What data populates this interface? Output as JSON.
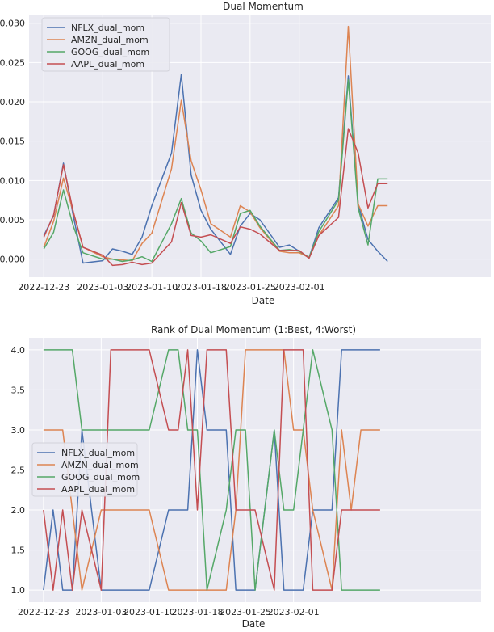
{
  "colors": {
    "NFLX": "#4c72b0",
    "AMZN": "#dd8452",
    "GOOG": "#55a868",
    "AAPL": "#c44e52",
    "plot_bg": "#eaeaf2",
    "grid": "#ffffff"
  },
  "chart_data": [
    {
      "type": "line",
      "title": "Dual Momentum",
      "xlabel": "Date",
      "ylabel": "",
      "x_day_range": [
        -1.5,
        45.5
      ],
      "ylim": [
        -0.0023,
        0.0311
      ],
      "x_ticks": [
        {
          "day": 0,
          "label": "2022-12-23"
        },
        {
          "day": 6,
          "label": "2023-01-03"
        },
        {
          "day": 11,
          "label": "2023-01-10"
        },
        {
          "day": 16,
          "label": "2023-01-18"
        },
        {
          "day": 21,
          "label": "2023-01-25"
        },
        {
          "day": 26,
          "label": "2023-02-01"
        }
      ],
      "y_ticks": [
        {
          "value": 0.0,
          "label": "0.000"
        },
        {
          "value": 0.005,
          "label": "0.005"
        },
        {
          "value": 0.01,
          "label": "0.010"
        },
        {
          "value": 0.015,
          "label": "0.015"
        },
        {
          "value": 0.02,
          "label": "0.020"
        },
        {
          "value": 0.025,
          "label": "0.025"
        },
        {
          "value": 0.03,
          "label": "0.030"
        }
      ],
      "legend_position": "upper-left",
      "x": [
        0,
        1,
        2,
        3,
        4,
        5,
        6,
        7,
        8,
        9,
        10,
        11,
        12,
        13,
        14,
        15,
        16,
        17,
        18,
        19,
        20,
        21,
        22,
        23,
        24,
        25,
        26,
        27,
        28,
        29,
        30
      ],
      "series": [
        {
          "name": "NFLX_dual_mom",
          "key": "NFLX",
          "values": [
            0.003,
            0.0055,
            0.0122,
            0.0055,
            -0.0005,
            -0.0002,
            0.0013,
            0.001,
            0.0006,
            0.0028,
            0.0068,
            0.0135,
            0.0235,
            0.0107,
            0.0062,
            0.0038,
            0.0006,
            0.0042,
            0.0058,
            0.005,
            0.0015,
            0.0018,
            0.001,
            0.0002,
            0.004,
            0.0078,
            0.0233,
            0.007,
            0.0025,
            0.001,
            -0.0003
          ]
        },
        {
          "name": "AMZN_dual_mom",
          "key": "AMZN",
          "values": [
            0.0015,
            0.0048,
            0.0103,
            0.006,
            0.0015,
            0.0003,
            0.0,
            -0.0001,
            -0.0002,
            0.002,
            0.0033,
            0.0115,
            0.0202,
            0.0125,
            0.0088,
            0.0045,
            0.0028,
            0.0068,
            0.006,
            0.004,
            0.001,
            0.0008,
            0.0008,
            0.0002,
            0.003,
            0.0068,
            0.0296,
            0.007,
            0.0042,
            0.0068,
            0.0068
          ]
        },
        {
          "name": "GOOG_dual_mom",
          "key": "GOOG",
          "values": [
            0.0013,
            0.0034,
            0.0088,
            0.0042,
            0.0008,
            0.0,
            0.0,
            -0.0003,
            -0.0001,
            0.0003,
            -0.0003,
            0.0045,
            0.0077,
            0.0033,
            0.0023,
            0.0008,
            0.0016,
            0.0058,
            0.0062,
            0.0042,
            0.0011,
            0.0012,
            0.001,
            0.0002,
            0.0035,
            0.0075,
            0.0228,
            0.0065,
            0.0018,
            0.0102,
            0.0102
          ]
        },
        {
          "name": "AAPL_dual_mom",
          "key": "AAPL",
          "values": [
            0.0028,
            0.0056,
            0.012,
            0.006,
            0.0015,
            0.0005,
            -0.0008,
            -0.0007,
            -0.0004,
            -0.0007,
            -0.0005,
            0.0022,
            0.0072,
            0.003,
            0.0028,
            0.0031,
            0.002,
            0.0041,
            0.0038,
            0.0032,
            0.0011,
            0.0011,
            0.0011,
            0.0001,
            0.003,
            0.0053,
            0.0166,
            0.0135,
            0.0065,
            0.0096,
            0.0096
          ]
        }
      ]
    },
    {
      "type": "line",
      "title": "Rank of Dual Momentum (1:Best, 4:Worst)",
      "xlabel": "Date",
      "ylabel": "",
      "x_day_range": [
        -1.5,
        45.5
      ],
      "ylim": [
        0.85,
        4.15
      ],
      "x_ticks": [
        {
          "day": 0,
          "label": "2022-12-23"
        },
        {
          "day": 6,
          "label": "2023-01-03"
        },
        {
          "day": 11,
          "label": "2023-01-10"
        },
        {
          "day": 16,
          "label": "2023-01-18"
        },
        {
          "day": 21,
          "label": "2023-01-25"
        },
        {
          "day": 26,
          "label": "2023-02-01"
        }
      ],
      "y_ticks": [
        {
          "value": 1.0,
          "label": "1.0"
        },
        {
          "value": 1.5,
          "label": "1.5"
        },
        {
          "value": 2.0,
          "label": "2.0"
        },
        {
          "value": 2.5,
          "label": "2.5"
        },
        {
          "value": 3.0,
          "label": "3.0"
        },
        {
          "value": 3.5,
          "label": "3.5"
        },
        {
          "value": 4.0,
          "label": "4.0"
        }
      ],
      "legend_position": "center-left",
      "x": [
        0,
        1,
        2,
        3,
        4,
        5,
        6,
        7,
        8,
        9,
        10,
        11,
        12,
        13,
        14,
        15,
        16,
        17,
        18,
        19,
        20,
        21,
        22,
        23,
        24,
        25,
        26,
        27,
        28,
        29,
        30
      ],
      "series": [
        {
          "name": "NFLX_dual_mom",
          "key": "NFLX",
          "values": [
            1,
            2,
            1,
            1,
            3,
            1,
            1,
            1,
            1,
            1,
            1,
            2,
            2,
            2,
            4,
            3,
            3,
            1,
            1,
            1,
            3,
            1,
            1,
            1,
            2,
            2,
            4,
            4,
            4,
            4,
            4
          ]
        },
        {
          "name": "AMZN_dual_mom",
          "key": "AMZN",
          "values": [
            3,
            3,
            3,
            2,
            1,
            2,
            2,
            2,
            2,
            2,
            2,
            1,
            1,
            1,
            1,
            1,
            1,
            2,
            4,
            4,
            4,
            4,
            3,
            3,
            2,
            1,
            3,
            2,
            3,
            3,
            3
          ]
        },
        {
          "name": "GOOG_dual_mom",
          "key": "GOOG",
          "values": [
            4,
            4,
            4,
            4,
            3,
            3,
            3,
            3,
            3,
            3,
            3,
            4,
            4,
            3,
            3,
            1,
            2,
            3,
            3,
            1,
            3,
            2,
            2,
            3,
            4,
            3,
            1,
            1,
            1,
            1,
            1
          ]
        },
        {
          "name": "AAPL_dual_mom",
          "key": "AAPL",
          "values": [
            2,
            1,
            2,
            1,
            2,
            1,
            4,
            4,
            4,
            4,
            4,
            3,
            3,
            4,
            2,
            4,
            4,
            2,
            2,
            2,
            1,
            4,
            4,
            4,
            1,
            1,
            2,
            2,
            2,
            2,
            2
          ]
        }
      ]
    }
  ]
}
